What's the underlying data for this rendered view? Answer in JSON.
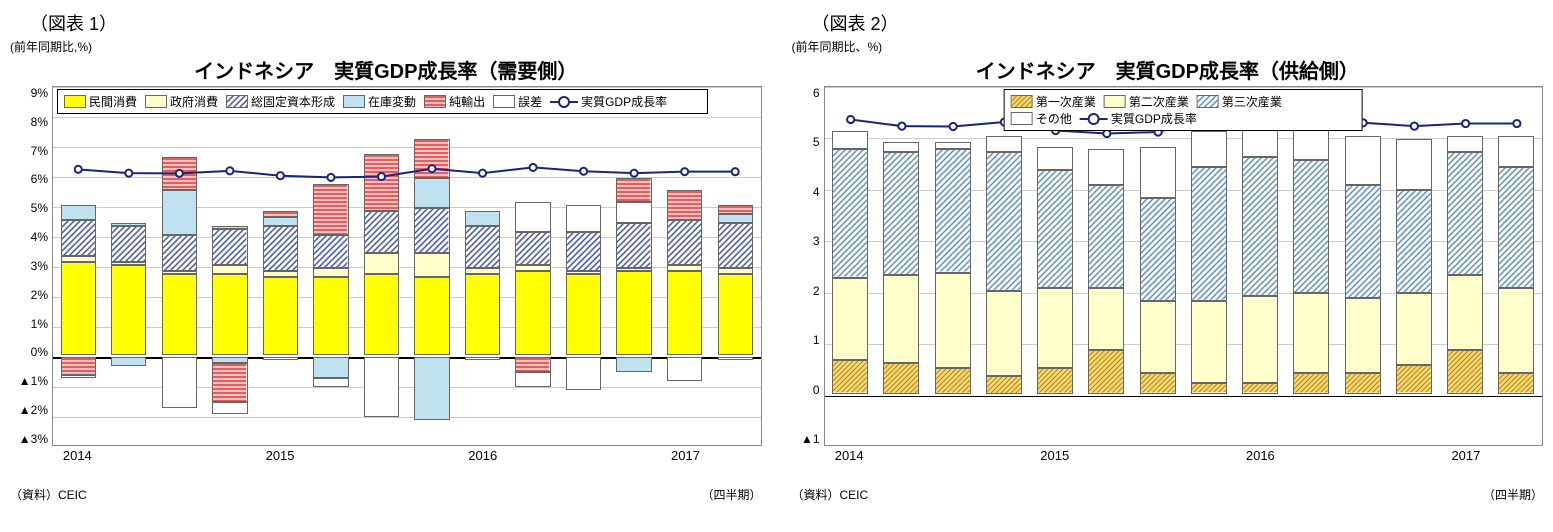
{
  "chart1": {
    "figure_label": "（図表 1）",
    "y_axis_label": "(前年同期比,%)",
    "title": "インドネシア　実質GDP成長率（需要側）",
    "source": "（資料）CEIC",
    "quarter_label": "（四半期）",
    "ylim": [
      -3,
      9
    ],
    "ytick_step": 1,
    "yticks": [
      "▲3%",
      "▲2%",
      "▲1%",
      "0%",
      "1%",
      "2%",
      "3%",
      "4%",
      "5%",
      "6%",
      "7%",
      "8%",
      "9%"
    ],
    "x_years": [
      "2014",
      "2015",
      "2016",
      "2017"
    ],
    "n_bars": 14,
    "legend": [
      {
        "label": "民間消費",
        "fill": "yellow"
      },
      {
        "label": "政府消費",
        "fill": "paleyellow"
      },
      {
        "label": "総固定資本形成",
        "fill": "diag"
      },
      {
        "label": "在庫変動",
        "fill": "lightblue"
      },
      {
        "label": "純輸出",
        "fill": "redstripe"
      },
      {
        "label": "誤差",
        "fill": "white"
      },
      {
        "label": "実質GDP成長率",
        "fill": "line"
      }
    ],
    "colors": {
      "yellow": "#ffff00",
      "paleyellow": "#ffffcc",
      "diag_fg": "#3f4fc4",
      "diag_bg": "#ffffff",
      "lightblue": "#bfe1f0",
      "red": "#f08080",
      "white": "#ffffff",
      "line": "#1a237e",
      "grid": "#cccccc"
    },
    "series": [
      {
        "p": {
          "yellow": 3.1,
          "paleyellow": 0.2,
          "diag": 1.2,
          "lightblue": 0.5
        },
        "n": {
          "redstripe": -0.6,
          "white": -0.1
        },
        "gdp": 5.12
      },
      {
        "p": {
          "yellow": 3.0,
          "paleyellow": 0.1,
          "diag": 1.2,
          "lightblue": 0.1
        },
        "n": {
          "lightblue": -0.3,
          "white": 0
        },
        "gdp": 4.94
      },
      {
        "p": {
          "yellow": 2.7,
          "paleyellow": 0.1,
          "diag": 1.2,
          "lightblue": 1.5,
          "redstripe": 1.1
        },
        "n": {
          "white": -1.7
        },
        "gdp": 4.93
      },
      {
        "p": {
          "yellow": 2.7,
          "paleyellow": 0.3,
          "diag": 1.2,
          "lightblue": 0.1
        },
        "n": {
          "lightblue": -0.2,
          "redstripe": -1.3,
          "white": -0.4
        },
        "gdp": 5.05
      },
      {
        "p": {
          "yellow": 2.6,
          "paleyellow": 0.2,
          "diag": 1.5,
          "lightblue": 0.3,
          "redstripe": 0.2
        },
        "n": {
          "white": -0.1
        },
        "gdp": 4.82
      },
      {
        "p": {
          "yellow": 2.6,
          "paleyellow": 0.3,
          "diag": 1.1,
          "redstripe": 1.7
        },
        "n": {
          "lightblue": -0.7,
          "white": -0.3
        },
        "gdp": 4.74
      },
      {
        "p": {
          "yellow": 2.7,
          "paleyellow": 0.7,
          "diag": 1.4,
          "redstripe": 1.9
        },
        "n": {
          "white": -2.0
        },
        "gdp": 4.78
      },
      {
        "p": {
          "yellow": 2.6,
          "paleyellow": 0.8,
          "diag": 1.5,
          "lightblue": 1.0,
          "redstripe": 1.3
        },
        "n": {
          "lightblue": -2.1
        },
        "gdp": 5.15
      },
      {
        "p": {
          "yellow": 2.7,
          "paleyellow": 0.2,
          "diag": 1.4,
          "lightblue": 0.5
        },
        "n": {
          "white": -0.1
        },
        "gdp": 4.94
      },
      {
        "p": {
          "yellow": 2.8,
          "paleyellow": 0.2,
          "diag": 1.1,
          "white": 1.0
        },
        "n": {
          "redstripe": -0.5,
          "white": -0.5
        },
        "gdp": 5.21
      },
      {
        "p": {
          "yellow": 2.7,
          "paleyellow": 0.1,
          "diag": 1.3,
          "white": 0.9
        },
        "n": {
          "white": -1.1
        },
        "gdp": 5.03
      },
      {
        "p": {
          "yellow": 2.8,
          "paleyellow": 0.1,
          "diag": 1.5,
          "white": 0.7,
          "redstripe": 0.8
        },
        "n": {
          "lightblue": -0.5
        },
        "gdp": 4.94
      },
      {
        "p": {
          "yellow": 2.8,
          "paleyellow": 0.2,
          "diag": 1.5,
          "redstripe": 1.0
        },
        "n": {
          "white": -0.8
        },
        "gdp": 5.01
      },
      {
        "p": {
          "yellow": 2.7,
          "paleyellow": 0.2,
          "diag": 1.5,
          "lightblue": 0.3,
          "redstripe": 0.3
        },
        "n": {
          "white": -0.1
        },
        "gdp": 5.01
      }
    ]
  },
  "chart2": {
    "figure_label": "（図表 2）",
    "y_axis_label": "(前年同期比、%)",
    "title": "インドネシア　実質GDP成長率（供給側）",
    "source": "（資料）CEIC",
    "quarter_label": "（四半期）",
    "ylim": [
      -1,
      6
    ],
    "ytick_step": 1,
    "yticks": [
      "▲1",
      "0",
      "1",
      "2",
      "3",
      "4",
      "5",
      "6"
    ],
    "x_years": [
      "2014",
      "2015",
      "2016",
      "2017"
    ],
    "n_bars": 14,
    "legend": [
      {
        "label": "第一次産業",
        "fill": "goldhatch"
      },
      {
        "label": "第二次産業",
        "fill": "paleyellow"
      },
      {
        "label": "第三次産業",
        "fill": "diag"
      },
      {
        "label": "その他",
        "fill": "white"
      },
      {
        "label": "実質GDP成長率",
        "fill": "line"
      }
    ],
    "colors": {
      "gold": "#d4a017",
      "paleyellow": "#ffffcc",
      "diag_fg": "#5b8fc7",
      "diag_bg": "#ffffff",
      "white": "#ffffff",
      "line": "#1a237e",
      "grid": "#cccccc"
    },
    "series": [
      {
        "p": {
          "goldhatch": 0.65,
          "paleyellow": 1.6,
          "diag": 2.5,
          "white": 0.35
        },
        "gdp": 5.12
      },
      {
        "p": {
          "goldhatch": 0.6,
          "paleyellow": 1.7,
          "diag": 2.4,
          "white": 0.2
        },
        "gdp": 4.94
      },
      {
        "p": {
          "goldhatch": 0.5,
          "paleyellow": 1.85,
          "diag": 2.4,
          "white": 0.15
        },
        "gdp": 4.93
      },
      {
        "p": {
          "goldhatch": 0.35,
          "paleyellow": 1.65,
          "diag": 2.7,
          "white": 0.3
        },
        "gdp": 5.05
      },
      {
        "p": {
          "goldhatch": 0.5,
          "paleyellow": 1.55,
          "diag": 2.3,
          "white": 0.45
        },
        "gdp": 4.82
      },
      {
        "p": {
          "goldhatch": 0.85,
          "paleyellow": 1.2,
          "diag": 2.0,
          "white": 0.7
        },
        "gdp": 4.74
      },
      {
        "p": {
          "goldhatch": 0.4,
          "paleyellow": 1.4,
          "diag": 2.0,
          "white": 1.0
        },
        "gdp": 4.78
      },
      {
        "p": {
          "goldhatch": 0.2,
          "paleyellow": 1.6,
          "diag": 2.6,
          "white": 0.7
        },
        "gdp": 5.15
      },
      {
        "p": {
          "goldhatch": 0.2,
          "paleyellow": 1.7,
          "diag": 2.7,
          "white": 0.6
        },
        "gdp": 4.94
      },
      {
        "p": {
          "goldhatch": 0.4,
          "paleyellow": 1.55,
          "diag": 2.6,
          "white": 0.6
        },
        "gdp": 5.21
      },
      {
        "p": {
          "goldhatch": 0.4,
          "paleyellow": 1.45,
          "diag": 2.2,
          "white": 0.95
        },
        "gdp": 5.03
      },
      {
        "p": {
          "goldhatch": 0.55,
          "paleyellow": 1.4,
          "diag": 2.0,
          "white": 1.0
        },
        "gdp": 4.94
      },
      {
        "p": {
          "goldhatch": 0.85,
          "paleyellow": 1.45,
          "diag": 2.4,
          "white": 0.3
        },
        "gdp": 5.01
      },
      {
        "p": {
          "goldhatch": 0.4,
          "paleyellow": 1.65,
          "diag": 2.35,
          "white": 0.6
        },
        "gdp": 5.01
      }
    ]
  }
}
